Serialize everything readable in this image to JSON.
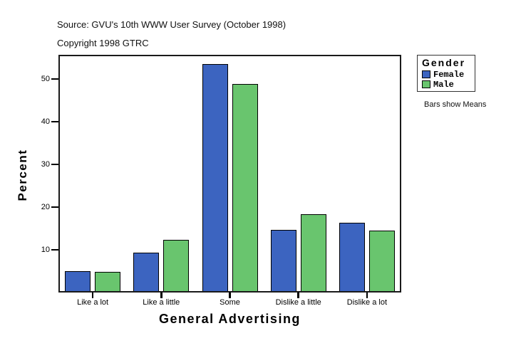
{
  "header": {
    "source": "Source: GVU's 10th WWW User Survey (October 1998)",
    "copyright": "Copyright 1998 GTRC"
  },
  "legend": {
    "title": "Gender",
    "items": [
      {
        "label": "Female",
        "color": "#3C64C0"
      },
      {
        "label": "Male",
        "color": "#69C56E"
      }
    ],
    "note": "Bars show Means"
  },
  "chart_data": {
    "type": "bar",
    "title": "",
    "xlabel": "General Advertising",
    "ylabel": "Percent",
    "categories": [
      "Like a lot",
      "Like a little",
      "Some",
      "Dislike a little",
      "Dislike a lot"
    ],
    "series": [
      {
        "name": "Female",
        "color": "#3C64C0",
        "values": [
          5.0,
          9.4,
          53.5,
          14.6,
          16.4
        ]
      },
      {
        "name": "Male",
        "color": "#69C56E",
        "values": [
          4.9,
          12.3,
          48.9,
          18.3,
          14.5
        ]
      }
    ],
    "yticks": [
      10,
      20,
      30,
      40,
      50
    ],
    "ylim": [
      0,
      55.7
    ],
    "units": "percent",
    "grid": false,
    "legend_position": "right",
    "note": "Bars show Means"
  }
}
